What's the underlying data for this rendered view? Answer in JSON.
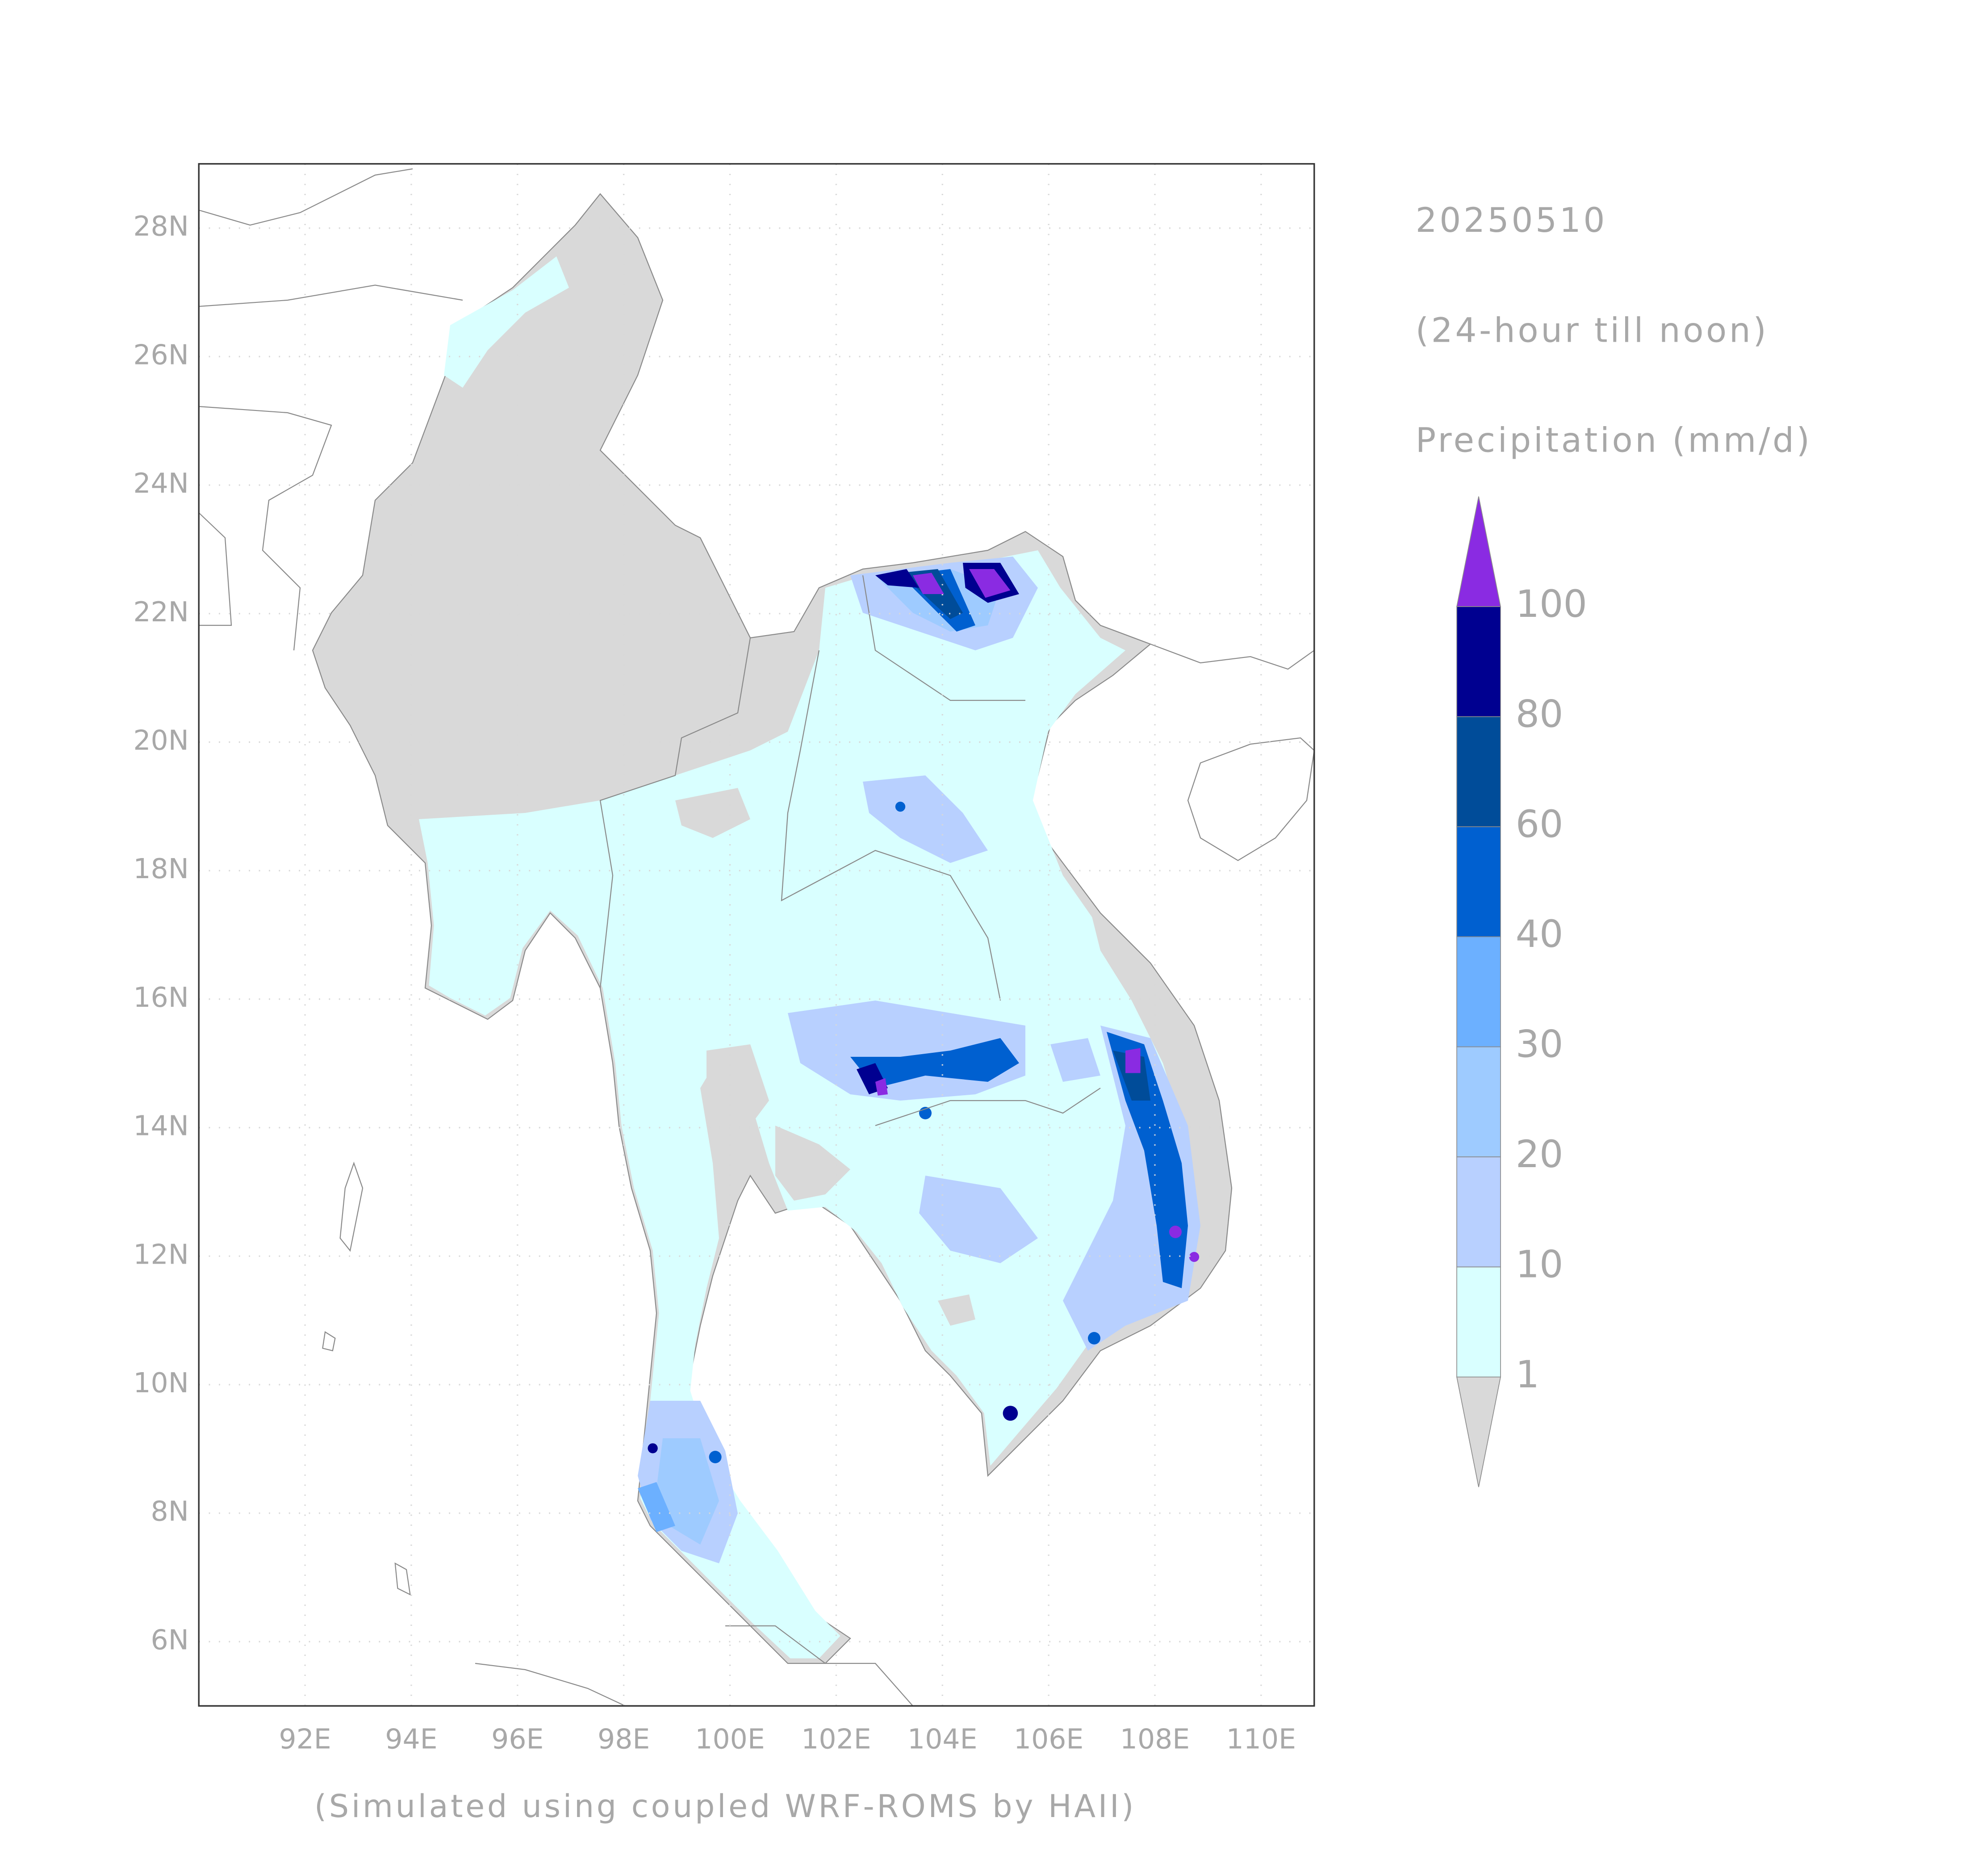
{
  "map": {
    "date": "20250510",
    "period": "(24-hour till noon)",
    "variable": "Precipitation (mm/d)",
    "credit": "(Simulated using coupled WRF-ROMS by HAII)",
    "xlim": [
      90,
      111
    ],
    "ylim": [
      5,
      29
    ],
    "xticks": [
      {
        "value": 92,
        "label": "92E"
      },
      {
        "value": 94,
        "label": "94E"
      },
      {
        "value": 96,
        "label": "96E"
      },
      {
        "value": 98,
        "label": "98E"
      },
      {
        "value": 100,
        "label": "100E"
      },
      {
        "value": 102,
        "label": "102E"
      },
      {
        "value": 104,
        "label": "104E"
      },
      {
        "value": 106,
        "label": "106E"
      },
      {
        "value": 108,
        "label": "108E"
      },
      {
        "value": 110,
        "label": "110E"
      }
    ],
    "yticks": [
      {
        "value": 6,
        "label": "6N"
      },
      {
        "value": 8,
        "label": "8N"
      },
      {
        "value": 10,
        "label": "10N"
      },
      {
        "value": 12,
        "label": "12N"
      },
      {
        "value": 14,
        "label": "14N"
      },
      {
        "value": 16,
        "label": "16N"
      },
      {
        "value": 18,
        "label": "18N"
      },
      {
        "value": 20,
        "label": "20N"
      },
      {
        "value": 22,
        "label": "22N"
      },
      {
        "value": 24,
        "label": "24N"
      },
      {
        "value": 26,
        "label": "26N"
      },
      {
        "value": 28,
        "label": "28N"
      }
    ],
    "grid": true
  },
  "colorbar": {
    "levels": [
      1,
      10,
      20,
      30,
      40,
      60,
      80,
      100
    ],
    "colors": [
      "#d9d9d9",
      "#d9ffff",
      "#b8d0ff",
      "#9ecbff",
      "#6cb0ff",
      "#0060d0",
      "#004c99",
      "#000090",
      "#8a2be2"
    ]
  }
}
